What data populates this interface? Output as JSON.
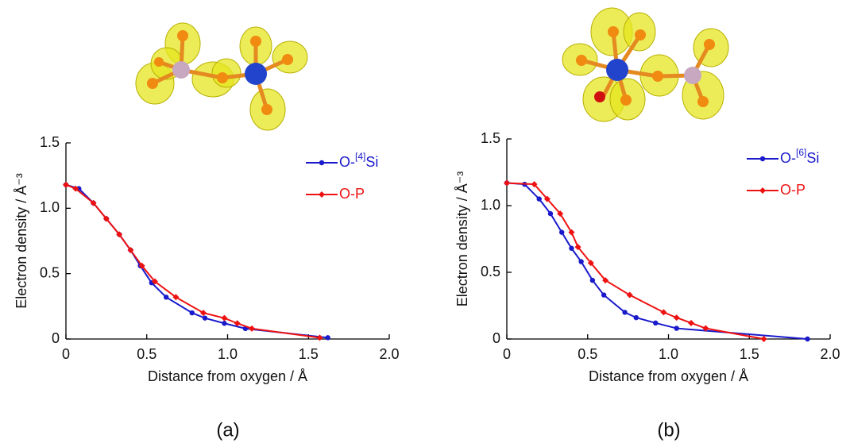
{
  "chart_data": [
    {
      "type": "line",
      "caption": "(a)",
      "xlabel": "Distance from oxygen / Å",
      "ylabel": "Electron density / Å⁻³",
      "xlim": [
        0,
        2
      ],
      "ylim": [
        0,
        1.5
      ],
      "xticks": [
        0,
        0.5,
        {
          "value": 1,
          "label": "1.0"
        },
        1.5,
        {
          "value": 2,
          "label": "2.0"
        }
      ],
      "yticks": [
        0,
        0.5,
        {
          "value": 1,
          "label": "1.0"
        },
        1.5
      ],
      "series": [
        {
          "name": "O-[4]Si",
          "color": "#1a1acc",
          "marker": "circle",
          "x": [
            0,
            0.08,
            0.17,
            0.25,
            0.33,
            0.4,
            0.46,
            0.53,
            0.62,
            0.78,
            0.86,
            0.98,
            1.11,
            1.62
          ],
          "values": [
            1.18,
            1.15,
            1.04,
            0.92,
            0.8,
            0.68,
            0.56,
            0.43,
            0.32,
            0.2,
            0.16,
            0.12,
            0.08,
            0.01
          ]
        },
        {
          "name": "O-P",
          "color": "#ee1111",
          "marker": "diamond",
          "x": [
            0,
            0.06,
            0.17,
            0.25,
            0.33,
            0.4,
            0.47,
            0.55,
            0.68,
            0.85,
            0.98,
            1.06,
            1.15,
            1.57
          ],
          "values": [
            1.18,
            1.15,
            1.04,
            0.92,
            0.8,
            0.68,
            0.56,
            0.44,
            0.32,
            0.2,
            0.16,
            0.12,
            0.08,
            0.01
          ]
        }
      ]
    },
    {
      "type": "line",
      "caption": "(b)",
      "xlabel": "Distance from oxygen / Å",
      "ylabel": "Electron density / Å⁻³",
      "xlim": [
        0,
        2
      ],
      "ylim": [
        0,
        1.5
      ],
      "xticks": [
        0,
        0.5,
        {
          "value": 1,
          "label": "1.0"
        },
        1.5,
        {
          "value": 2,
          "label": "2.0"
        }
      ],
      "yticks": [
        0,
        0.5,
        {
          "value": 1,
          "label": "1.0"
        },
        1.5
      ],
      "series": [
        {
          "name": "O-[6]Si",
          "color": "#1a1acc",
          "marker": "circle",
          "x": [
            0,
            0.11,
            0.2,
            0.27,
            0.34,
            0.4,
            0.46,
            0.53,
            0.6,
            0.73,
            0.8,
            0.92,
            1.05,
            1.86
          ],
          "values": [
            1.17,
            1.16,
            1.05,
            0.94,
            0.8,
            0.68,
            0.58,
            0.44,
            0.33,
            0.2,
            0.16,
            0.12,
            0.08,
            0
          ]
        },
        {
          "name": "O-P",
          "color": "#ee1111",
          "marker": "diamond",
          "x": [
            0,
            0.17,
            0.25,
            0.33,
            0.4,
            0.44,
            0.52,
            0.61,
            0.76,
            0.97,
            1.05,
            1.14,
            1.23,
            1.59
          ],
          "values": [
            1.17,
            1.16,
            1.05,
            0.94,
            0.8,
            0.69,
            0.57,
            0.44,
            0.33,
            0.2,
            0.16,
            0.12,
            0.08,
            0
          ]
        }
      ]
    }
  ]
}
